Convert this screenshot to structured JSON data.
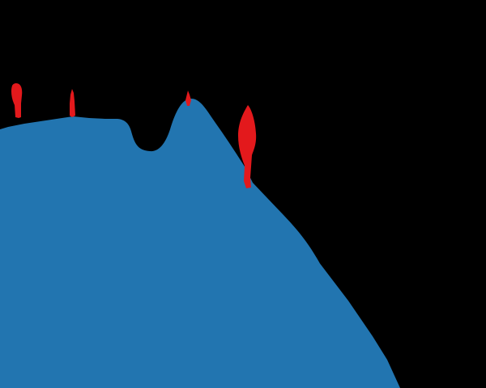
{
  "scene": {
    "background_color": "#000000",
    "ground_color": "#2275b0",
    "figure_color": "#e3191c",
    "figure_count": 4
  }
}
